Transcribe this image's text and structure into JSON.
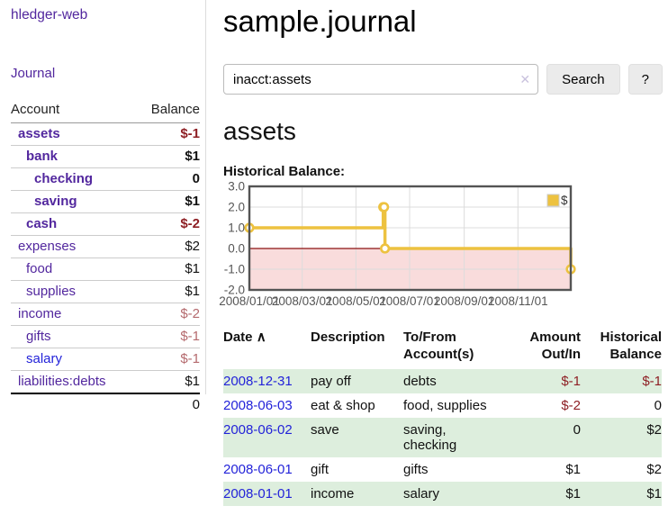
{
  "sidebar": {
    "app_title": "hledger-web",
    "journal_link": "Journal",
    "accounts_header": {
      "account": "Account",
      "balance": "Balance"
    },
    "accounts": [
      {
        "name": "assets",
        "balance": "$-1",
        "level": 1,
        "bold": true,
        "balance_class": "neg-strong",
        "link_color": ""
      },
      {
        "name": "bank",
        "balance": "$1",
        "level": 2,
        "bold": true,
        "balance_class": "",
        "link_color": ""
      },
      {
        "name": "checking",
        "balance": "0",
        "level": 3,
        "bold": true,
        "balance_class": "",
        "link_color": ""
      },
      {
        "name": "saving",
        "balance": "$1",
        "level": 3,
        "bold": true,
        "balance_class": "",
        "link_color": ""
      },
      {
        "name": "cash",
        "balance": "$-2",
        "level": 2,
        "bold": true,
        "balance_class": "neg-strong",
        "link_color": ""
      },
      {
        "name": "expenses",
        "balance": "$2",
        "level": 1,
        "bold": false,
        "balance_class": "",
        "link_color": ""
      },
      {
        "name": "food",
        "balance": "$1",
        "level": 2,
        "bold": false,
        "balance_class": "",
        "link_color": ""
      },
      {
        "name": "supplies",
        "balance": "$1",
        "level": 2,
        "bold": false,
        "balance_class": "",
        "link_color": ""
      },
      {
        "name": "income",
        "balance": "$-2",
        "level": 1,
        "bold": false,
        "balance_class": "neg-soft",
        "link_color": ""
      },
      {
        "name": "gifts",
        "balance": "$-1",
        "level": 2,
        "bold": false,
        "balance_class": "neg-soft",
        "link_color": ""
      },
      {
        "name": "salary",
        "balance": "$-1",
        "level": 2,
        "bold": false,
        "balance_class": "neg-soft",
        "link_color": "blue"
      },
      {
        "name": "liabilities:debts",
        "balance": "$1",
        "level": 1,
        "bold": false,
        "balance_class": "",
        "link_color": ""
      }
    ],
    "total": "0"
  },
  "main": {
    "title": "sample.journal",
    "search": {
      "value": "inacct:assets",
      "clear_icon": "✕",
      "button_label": "Search",
      "help_label": "?"
    },
    "account_heading": "assets",
    "chart_label": "Historical Balance:"
  },
  "chart_data": {
    "type": "line",
    "title": "Historical Balance",
    "step": true,
    "series": [
      {
        "name": "$",
        "color": "#edc240",
        "points": [
          [
            "2008-01-01",
            1
          ],
          [
            "2008-06-01",
            2
          ],
          [
            "2008-06-02",
            2
          ],
          [
            "2008-06-03",
            0
          ],
          [
            "2008-12-31",
            -1
          ]
        ]
      }
    ],
    "x_range": [
      "2008-01-01",
      "2008-12-31"
    ],
    "x_ticks": [
      {
        "date": "2008-01-01",
        "label": "2008/01/01"
      },
      {
        "date": "2008-03-01",
        "label": "2008/03/01"
      },
      {
        "date": "2008-05-01",
        "label": "2008/05/01"
      },
      {
        "date": "2008-07-01",
        "label": "2008/07/01"
      },
      {
        "date": "2008-09-01",
        "label": "2008/09/01"
      },
      {
        "date": "2008-11-01",
        "label": "2008/11/01"
      }
    ],
    "y_ticks": [
      {
        "v": 3,
        "label": "3.0"
      },
      {
        "v": 2,
        "label": "2.0"
      },
      {
        "v": 1,
        "label": "1.0"
      },
      {
        "v": 0,
        "label": "0.0"
      },
      {
        "v": -1,
        "label": "-1.0"
      },
      {
        "v": -2,
        "label": "-2.0"
      }
    ],
    "ylim": [
      -2,
      3
    ],
    "grid": true,
    "legend": {
      "label": "$",
      "position": "top-right"
    },
    "colors": {
      "negative_region": "#f9dcdc",
      "zero_line": "#8c1010",
      "grid_line": "#dcdcdc",
      "plot_border": "#545454",
      "tick_text": "#555555"
    }
  },
  "register": {
    "headers": {
      "date": "Date",
      "sort_icon": "∧",
      "description": "Description",
      "account": "To/From Account(s)",
      "amount": "Amount Out/In",
      "balance": "Historical Balance"
    },
    "rows": [
      {
        "date": "2008-12-31",
        "description": "pay off",
        "accounts": "debts",
        "amount": "$-1",
        "balance": "$-1"
      },
      {
        "date": "2008-06-03",
        "description": "eat & shop",
        "accounts": "food, supplies",
        "amount": "$-2",
        "balance": "0"
      },
      {
        "date": "2008-06-02",
        "description": "save",
        "accounts": "saving, checking",
        "amount": "0",
        "balance": "$2"
      },
      {
        "date": "2008-06-01",
        "description": "gift",
        "accounts": "gifts",
        "amount": "$1",
        "balance": "$2"
      },
      {
        "date": "2008-01-01",
        "description": "income",
        "accounts": "salary",
        "amount": "$1",
        "balance": "$1"
      }
    ]
  }
}
